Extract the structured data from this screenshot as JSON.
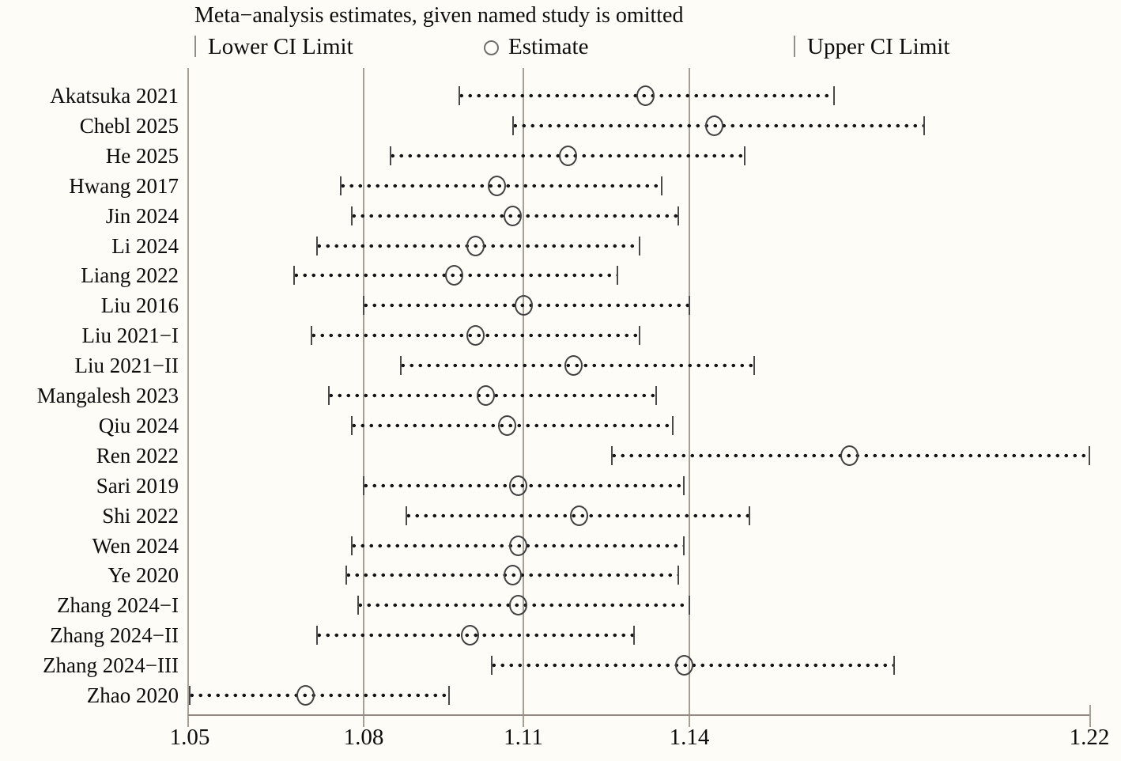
{
  "legend": {
    "lower": "Lower CI Limit",
    "estimate": "Estimate",
    "upper": "Upper CI Limit"
  },
  "chart_data": {
    "type": "scatter",
    "subtype": "forest-leave-one-out",
    "title": "Meta−analysis estimates, given named study is omitted",
    "xlabel": "",
    "ylabel": "",
    "xlim": [
      1.05,
      1.22
    ],
    "x_ticks": [
      1.05,
      1.08,
      1.11,
      1.14,
      1.22
    ],
    "gridlines_at": [
      1.08,
      1.11,
      1.14
    ],
    "grid": true,
    "legend_position": "top",
    "studies": [
      {
        "label": "Akatsuka  2021",
        "lower": 1.098,
        "estimate": 1.132,
        "upper": 1.169
      },
      {
        "label": "Chebl 2025",
        "lower": 1.108,
        "estimate": 1.145,
        "upper": 1.187
      },
      {
        "label": "He 2025",
        "lower": 1.085,
        "estimate": 1.118,
        "upper": 1.151
      },
      {
        "label": "Hwang 2017",
        "lower": 1.076,
        "estimate": 1.105,
        "upper": 1.135
      },
      {
        "label": "Jin 2024",
        "lower": 1.078,
        "estimate": 1.108,
        "upper": 1.138
      },
      {
        "label": "Li 2024",
        "lower": 1.072,
        "estimate": 1.101,
        "upper": 1.131
      },
      {
        "label": "Liang 2022",
        "lower": 1.068,
        "estimate": 1.097,
        "upper": 1.127
      },
      {
        "label": "Liu 2016",
        "lower": 1.08,
        "estimate": 1.11,
        "upper": 1.14
      },
      {
        "label": "Liu 2021−I",
        "lower": 1.071,
        "estimate": 1.101,
        "upper": 1.131
      },
      {
        "label": "Liu 2021−II",
        "lower": 1.087,
        "estimate": 1.119,
        "upper": 1.153
      },
      {
        "label": "Mangalesh 2023",
        "lower": 1.074,
        "estimate": 1.103,
        "upper": 1.134
      },
      {
        "label": "Qiu 2024",
        "lower": 1.078,
        "estimate": 1.107,
        "upper": 1.137
      },
      {
        "label": "Ren 2022",
        "lower": 1.126,
        "estimate": 1.172,
        "upper": 1.22
      },
      {
        "label": "Sari 2019",
        "lower": 1.08,
        "estimate": 1.109,
        "upper": 1.139
      },
      {
        "label": "Shi 2022",
        "lower": 1.088,
        "estimate": 1.12,
        "upper": 1.152
      },
      {
        "label": "Wen 2024",
        "lower": 1.078,
        "estimate": 1.109,
        "upper": 1.139
      },
      {
        "label": "Ye 2020",
        "lower": 1.077,
        "estimate": 1.108,
        "upper": 1.138
      },
      {
        "label": "Zhang 2024−I",
        "lower": 1.079,
        "estimate": 1.109,
        "upper": 1.14
      },
      {
        "label": "Zhang 2024−II",
        "lower": 1.072,
        "estimate": 1.1,
        "upper": 1.13
      },
      {
        "label": "Zhang 2024−III",
        "lower": 1.104,
        "estimate": 1.139,
        "upper": 1.181
      },
      {
        "label": "Zhao 2020",
        "lower": 1.05,
        "estimate": 1.07,
        "upper": 1.096
      }
    ],
    "colors": {
      "dots": "#141414",
      "circle_outline": "#414141",
      "gridline": "#a79e96",
      "background": "#fdfcf7"
    }
  }
}
